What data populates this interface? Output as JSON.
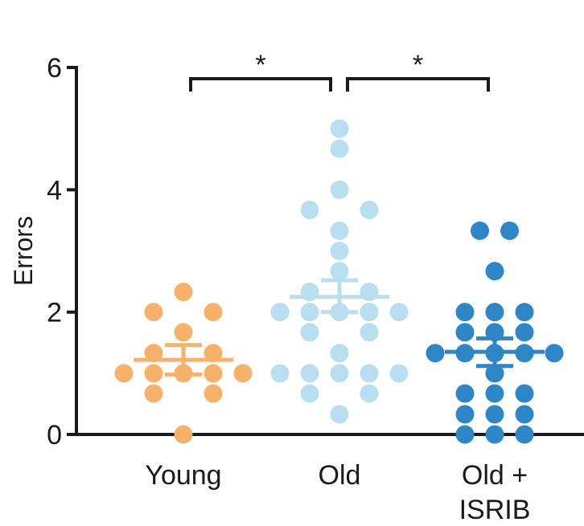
{
  "chart_data": {
    "type": "scatter",
    "title": "",
    "xlabel": "",
    "ylabel": "Errors",
    "ylim": [
      0,
      6
    ],
    "yticks": [
      "0",
      "2",
      "4",
      "6"
    ],
    "categories": [
      {
        "lines": [
          "Young"
        ]
      },
      {
        "lines": [
          "Old"
        ]
      },
      {
        "lines": [
          "Old +",
          "ISRIB"
        ]
      }
    ],
    "grid": false,
    "legend": "none",
    "series": [
      {
        "color": "#f6b26b",
        "mean": 1.22,
        "sem_low": 0.98,
        "sem_high": 1.46,
        "points": [
          [
            0,
            2.33
          ],
          [
            -1,
            2.0
          ],
          [
            1,
            2.0
          ],
          [
            0,
            1.67
          ],
          [
            -1,
            1.33
          ],
          [
            1,
            1.33
          ],
          [
            -2,
            1.0
          ],
          [
            -1,
            1.0
          ],
          [
            0,
            1.0
          ],
          [
            1,
            1.0
          ],
          [
            2,
            1.0
          ],
          [
            -1,
            0.67
          ],
          [
            1,
            0.67
          ],
          [
            0,
            0.0
          ]
        ]
      },
      {
        "color": "#b9def0",
        "mean": 2.25,
        "sem_low": 2.0,
        "sem_high": 2.52,
        "points": [
          [
            0,
            5.0
          ],
          [
            0,
            4.67
          ],
          [
            0,
            4.0
          ],
          [
            -1,
            3.67
          ],
          [
            1,
            3.67
          ],
          [
            0,
            3.33
          ],
          [
            0,
            3.0
          ],
          [
            0,
            2.67
          ],
          [
            -1,
            2.33
          ],
          [
            1,
            2.33
          ],
          [
            -2,
            2.0
          ],
          [
            -1,
            2.0
          ],
          [
            0,
            2.0
          ],
          [
            1,
            2.0
          ],
          [
            2,
            2.0
          ],
          [
            -1,
            1.67
          ],
          [
            1,
            1.67
          ],
          [
            0,
            1.33
          ],
          [
            -2,
            1.0
          ],
          [
            -1,
            1.0
          ],
          [
            0,
            1.0
          ],
          [
            1,
            1.0
          ],
          [
            2,
            1.0
          ],
          [
            -1,
            0.67
          ],
          [
            1,
            0.67
          ],
          [
            0,
            0.33
          ]
        ]
      },
      {
        "color": "#2f86c6",
        "mean": 1.35,
        "sem_low": 1.12,
        "sem_high": 1.57,
        "points": [
          [
            -0.5,
            3.33
          ],
          [
            0.5,
            3.33
          ],
          [
            0,
            2.67
          ],
          [
            -1,
            2.0
          ],
          [
            0,
            2.0
          ],
          [
            1,
            2.0
          ],
          [
            -1,
            1.67
          ],
          [
            0,
            1.67
          ],
          [
            1,
            1.67
          ],
          [
            -2,
            1.33
          ],
          [
            -1,
            1.33
          ],
          [
            0,
            1.33
          ],
          [
            1,
            1.33
          ],
          [
            2,
            1.33
          ],
          [
            0,
            1.0
          ],
          [
            -1,
            0.67
          ],
          [
            0,
            0.67
          ],
          [
            1,
            0.67
          ],
          [
            -1,
            0.33
          ],
          [
            0,
            0.33
          ],
          [
            1,
            0.33
          ],
          [
            -1,
            0.0
          ],
          [
            0,
            0.0
          ],
          [
            1,
            0.0
          ]
        ]
      }
    ],
    "significance": [
      {
        "from": 0,
        "to": 1,
        "label": "*"
      },
      {
        "from": 1,
        "to": 2,
        "label": "*"
      }
    ]
  }
}
